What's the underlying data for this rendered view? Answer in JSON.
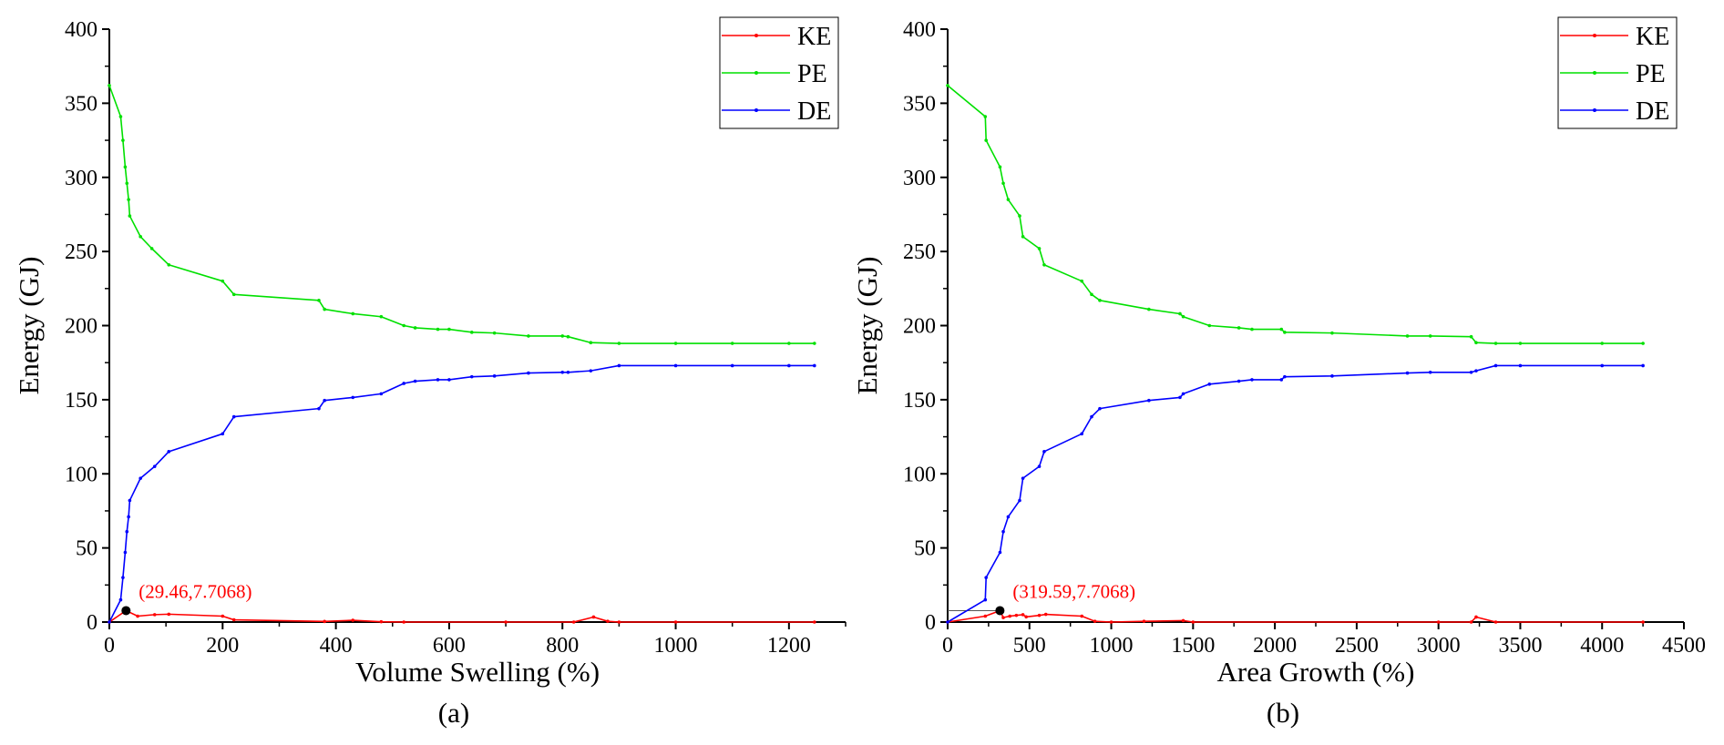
{
  "chart_data": [
    {
      "panel_label": "(a)",
      "type": "line",
      "xlabel": "Volume Swelling (%)",
      "ylabel": "Energy (GJ)",
      "xlim": [
        0,
        1300
      ],
      "ylim": [
        0,
        400
      ],
      "xticks": [
        0,
        200,
        400,
        600,
        800,
        1000,
        1200
      ],
      "yticks": [
        0,
        50,
        100,
        150,
        200,
        250,
        300,
        350,
        400
      ],
      "legend_position": "top-right",
      "annotation": {
        "text": "(29.46,7.7068)",
        "x": 29.46,
        "y": 7.7068,
        "color": "#ff0000"
      },
      "series": [
        {
          "name": "KE",
          "color": "#ff0000",
          "points": [
            [
              0,
              0
            ],
            [
              29.46,
              7.7068
            ],
            [
              50,
              4
            ],
            [
              80,
              5
            ],
            [
              105,
              5.3
            ],
            [
              200,
              4
            ],
            [
              220,
              1.5
            ],
            [
              380,
              0.4
            ],
            [
              430,
              1.2
            ],
            [
              480,
              0.2
            ],
            [
              520,
              0
            ],
            [
              700,
              0
            ],
            [
              820,
              0
            ],
            [
              855,
              3.4
            ],
            [
              880,
              0.5
            ],
            [
              900,
              0
            ],
            [
              1000,
              0
            ],
            [
              1245,
              0
            ]
          ]
        },
        {
          "name": "PE",
          "color": "#00e000",
          "points": [
            [
              0,
              362
            ],
            [
              20,
              341
            ],
            [
              24,
              325
            ],
            [
              28,
              307
            ],
            [
              31,
              296
            ],
            [
              34,
              285
            ],
            [
              36,
              274
            ],
            [
              55,
              260
            ],
            [
              75,
              252
            ],
            [
              105,
              241
            ],
            [
              200,
              230
            ],
            [
              220,
              221
            ],
            [
              370,
              217
            ],
            [
              380,
              211
            ],
            [
              430,
              208
            ],
            [
              480,
              206
            ],
            [
              520,
              200
            ],
            [
              540,
              198.5
            ],
            [
              580,
              197.5
            ],
            [
              600,
              197.5
            ],
            [
              640,
              195.5
            ],
            [
              680,
              195
            ],
            [
              740,
              193
            ],
            [
              800,
              193
            ],
            [
              810,
              192.5
            ],
            [
              850,
              188.5
            ],
            [
              900,
              188
            ],
            [
              1000,
              188
            ],
            [
              1100,
              188
            ],
            [
              1200,
              188
            ],
            [
              1245,
              188
            ]
          ]
        },
        {
          "name": "DE",
          "color": "#0000ff",
          "points": [
            [
              0,
              0
            ],
            [
              20,
              15
            ],
            [
              24,
              30
            ],
            [
              28,
              47
            ],
            [
              31,
              61
            ],
            [
              34,
              71
            ],
            [
              36,
              82
            ],
            [
              55,
              97
            ],
            [
              80,
              105
            ],
            [
              105,
              115
            ],
            [
              200,
              127
            ],
            [
              220,
              138.5
            ],
            [
              370,
              144
            ],
            [
              380,
              149.5
            ],
            [
              430,
              151.5
            ],
            [
              480,
              154
            ],
            [
              520,
              161
            ],
            [
              540,
              162.5
            ],
            [
              580,
              163.5
            ],
            [
              600,
              163.5
            ],
            [
              640,
              165.5
            ],
            [
              680,
              166
            ],
            [
              740,
              168
            ],
            [
              800,
              168.5
            ],
            [
              810,
              168.5
            ],
            [
              850,
              169.5
            ],
            [
              900,
              173
            ],
            [
              1000,
              173
            ],
            [
              1100,
              173
            ],
            [
              1200,
              173
            ],
            [
              1245,
              173
            ]
          ]
        }
      ]
    },
    {
      "panel_label": "(b)",
      "type": "line",
      "xlabel": "Area Growth (%)",
      "ylabel": "Energy (GJ)",
      "xlim": [
        0,
        4500
      ],
      "ylim": [
        0,
        400
      ],
      "xticks": [
        0,
        500,
        1000,
        1500,
        2000,
        2500,
        3000,
        3500,
        4000,
        4500
      ],
      "yticks": [
        0,
        50,
        100,
        150,
        200,
        250,
        300,
        350,
        400
      ],
      "legend_position": "top-right",
      "annotation": {
        "text": "(319.59,7.7068)",
        "x": 319.59,
        "y": 7.7068,
        "color": "#ff0000"
      },
      "series": [
        {
          "name": "KE",
          "color": "#ff0000",
          "points": [
            [
              0,
              0
            ],
            [
              230,
              4
            ],
            [
              319.59,
              7.7068
            ],
            [
              340,
              3
            ],
            [
              380,
              4
            ],
            [
              420,
              4.5
            ],
            [
              460,
              5
            ],
            [
              480,
              3.5
            ],
            [
              560,
              4.5
            ],
            [
              600,
              5.2
            ],
            [
              820,
              4
            ],
            [
              900,
              0.5
            ],
            [
              1000,
              0
            ],
            [
              1200,
              0.5
            ],
            [
              1440,
              1
            ],
            [
              1500,
              0
            ],
            [
              3000,
              0
            ],
            [
              3200,
              0
            ],
            [
              3230,
              3.4
            ],
            [
              3350,
              0
            ],
            [
              4250,
              0
            ]
          ]
        },
        {
          "name": "PE",
          "color": "#00e000",
          "points": [
            [
              0,
              362
            ],
            [
              230,
              341
            ],
            [
              235,
              325
            ],
            [
              320,
              307
            ],
            [
              340,
              296
            ],
            [
              370,
              285
            ],
            [
              440,
              274
            ],
            [
              460,
              260
            ],
            [
              560,
              252
            ],
            [
              590,
              241
            ],
            [
              820,
              230
            ],
            [
              880,
              221
            ],
            [
              930,
              217
            ],
            [
              1230,
              211
            ],
            [
              1420,
              208
            ],
            [
              1440,
              206
            ],
            [
              1600,
              200
            ],
            [
              1780,
              198.5
            ],
            [
              1860,
              197.5
            ],
            [
              2040,
              197.5
            ],
            [
              2060,
              195.5
            ],
            [
              2350,
              195
            ],
            [
              2810,
              193
            ],
            [
              2950,
              193
            ],
            [
              3200,
              192.5
            ],
            [
              3230,
              188.5
            ],
            [
              3350,
              188
            ],
            [
              3500,
              188
            ],
            [
              4000,
              188
            ],
            [
              4250,
              188
            ]
          ]
        },
        {
          "name": "DE",
          "color": "#0000ff",
          "points": [
            [
              0,
              0
            ],
            [
              230,
              15
            ],
            [
              235,
              30
            ],
            [
              320,
              47
            ],
            [
              340,
              61
            ],
            [
              370,
              71
            ],
            [
              440,
              82
            ],
            [
              460,
              97
            ],
            [
              560,
              105
            ],
            [
              590,
              115
            ],
            [
              820,
              127
            ],
            [
              880,
              138.5
            ],
            [
              930,
              144
            ],
            [
              1230,
              149.5
            ],
            [
              1420,
              151.5
            ],
            [
              1440,
              154
            ],
            [
              1600,
              160.5
            ],
            [
              1780,
              162.5
            ],
            [
              1860,
              163.5
            ],
            [
              2040,
              163.5
            ],
            [
              2060,
              165.5
            ],
            [
              2350,
              166
            ],
            [
              2810,
              168
            ],
            [
              2950,
              168.5
            ],
            [
              3200,
              168.5
            ],
            [
              3230,
              169.5
            ],
            [
              3350,
              173
            ],
            [
              3500,
              173
            ],
            [
              4000,
              173
            ],
            [
              4250,
              173
            ]
          ]
        }
      ]
    }
  ]
}
